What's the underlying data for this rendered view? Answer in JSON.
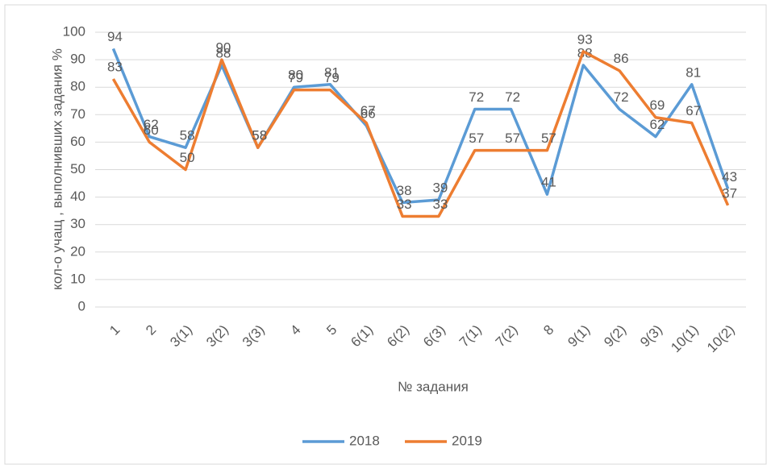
{
  "chart_data": {
    "type": "line",
    "x_label": "№ задания",
    "y_label": "кол-о учащ , выполнивших задания %",
    "categories": [
      "1",
      "2",
      "3(1)",
      "3(2)",
      "3(3)",
      "4",
      "5",
      "6(1)",
      "6(2)",
      "6(3)",
      "7(1)",
      "7(2)",
      "8",
      "9(1)",
      "9(2)",
      "9(3)",
      "10(1)",
      "10(2)"
    ],
    "series": [
      {
        "name": "2018",
        "color": "#5b9bd5",
        "values": [
          94,
          62,
          58,
          88,
          58,
          80,
          81,
          66,
          38,
          39,
          72,
          72,
          41,
          88,
          72,
          62,
          81,
          43
        ]
      },
      {
        "name": "2019",
        "color": "#ed7d31",
        "values": [
          83,
          60,
          50,
          90,
          58,
          79,
          79,
          67,
          33,
          33,
          57,
          57,
          57,
          93,
          86,
          69,
          67,
          37
        ]
      }
    ],
    "ylim": [
      0,
      100
    ],
    "yticks": [
      0,
      10,
      20,
      30,
      40,
      50,
      60,
      70,
      80,
      90,
      100
    ],
    "grid": true,
    "legend": "bottom"
  }
}
